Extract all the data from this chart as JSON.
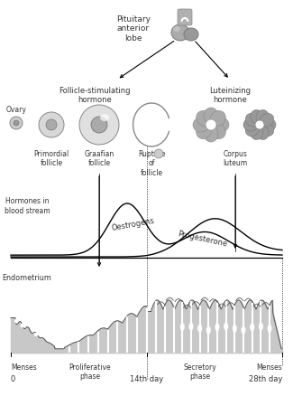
{
  "bg_color": "#ffffff",
  "text_color": "#333333",
  "dark_gray": "#555555",
  "mid_gray": "#888888",
  "light_gray": "#bbbbbb",
  "fill_gray": "#c8c8c8",
  "pituitary_label": "Pituitary\nanterior\nlobe",
  "fsh_label": "Follicle-stimulating\nhormone",
  "lh_label": "Luteinizing\nhormone",
  "ovary_label": "Ovary",
  "hormone_label": "Hormones in\nblood stream",
  "oestrogen_label": "Oestrogens",
  "progesterone_label": "Progesterone",
  "endometrium_label": "Endometrium",
  "fig_width": 3.25,
  "fig_height": 4.38,
  "dpi": 100
}
